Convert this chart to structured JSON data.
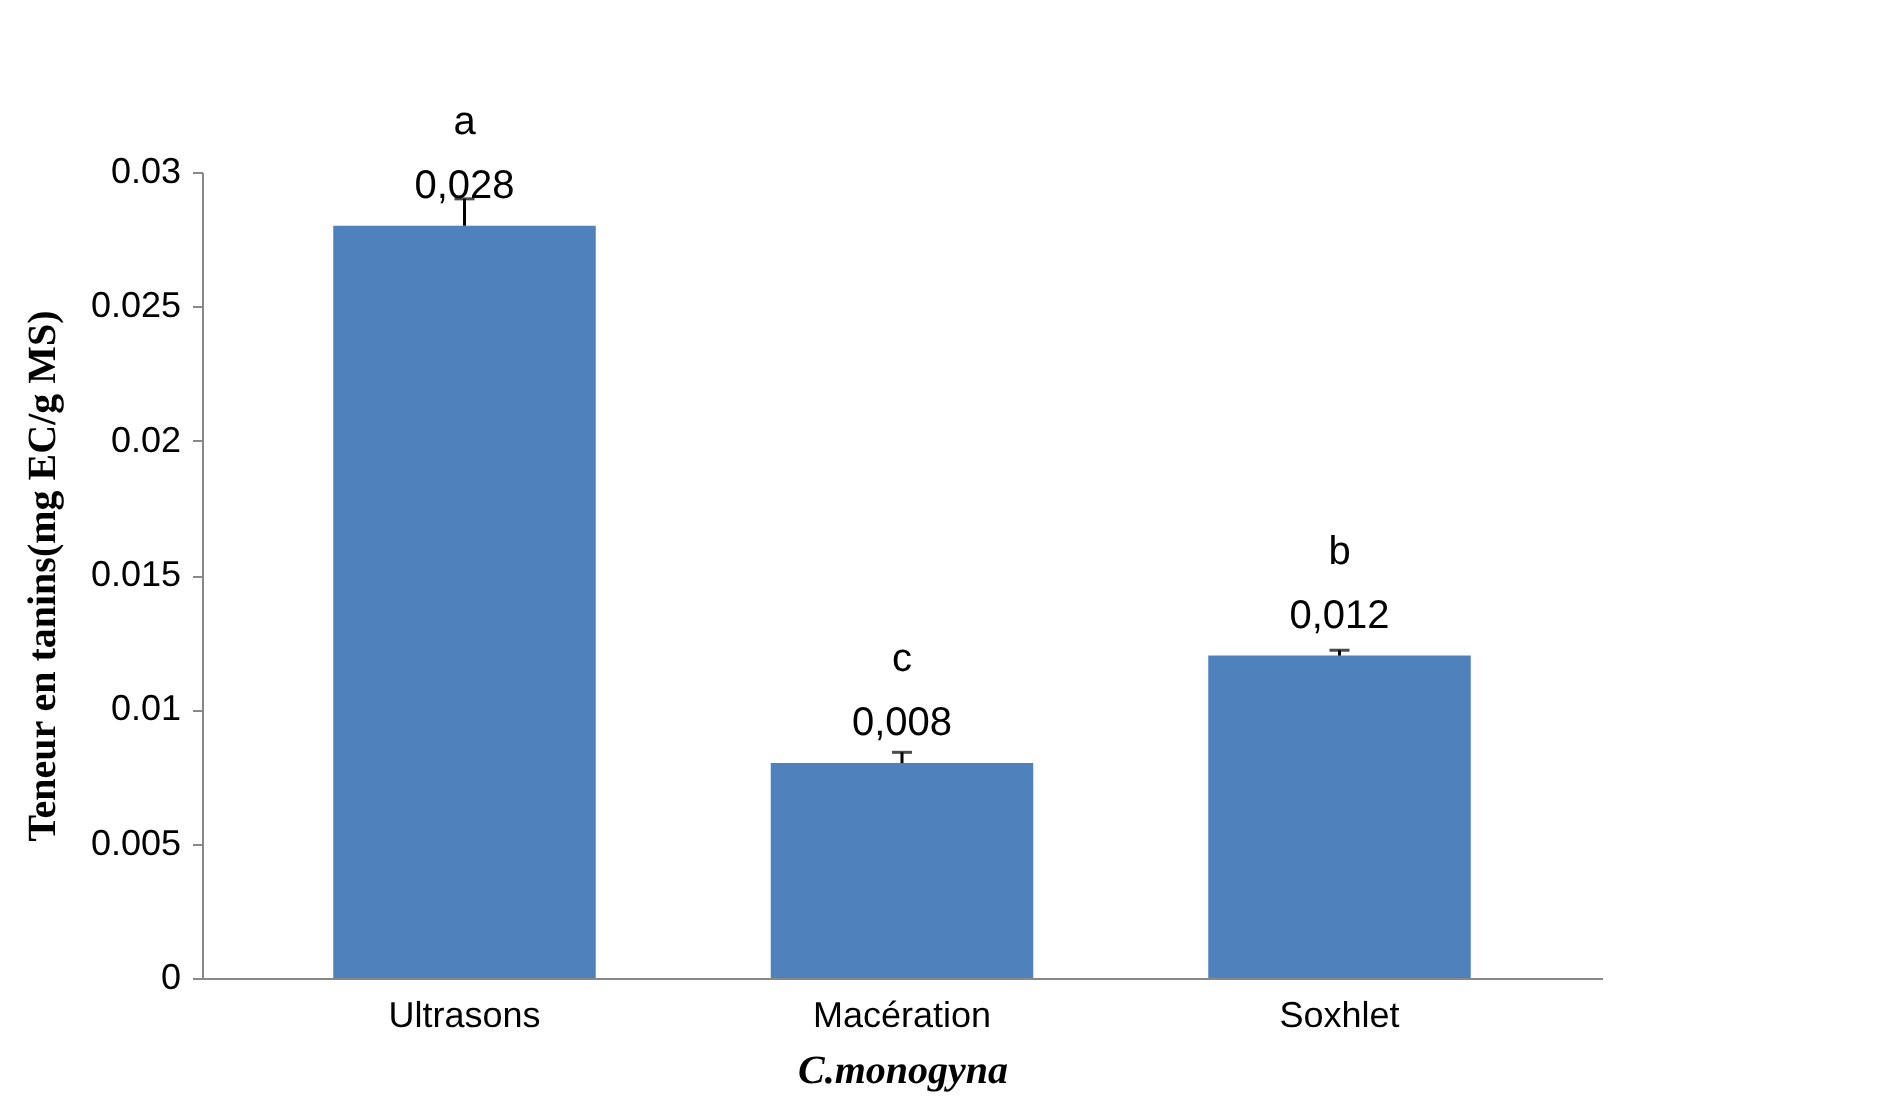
{
  "chart_data": {
    "type": "bar",
    "xlabel": "C.monogyna",
    "ylabel": "Teneur en tanins(mg EC/g MS)",
    "categories": [
      "Ultrasons",
      "Macération",
      "Soxhlet"
    ],
    "values": [
      0.028,
      0.008,
      0.012
    ],
    "color": "#4f81bd",
    "errors": [
      [
        0.028,
        0.029
      ],
      [
        0.008,
        0.0084
      ],
      [
        0.012,
        0.0122
      ]
    ],
    "value_labels": [
      "0,028",
      "0,008",
      "0,012"
    ],
    "annotations": [
      {
        "text": "a",
        "x": "Ultrasons",
        "y": 0.028
      },
      {
        "text": "c",
        "x": "Macération",
        "y": 0.008
      },
      {
        "text": "b",
        "x": "Soxhlet",
        "y": 0.012
      }
    ],
    "ylim": [
      0,
      0.03
    ],
    "yticks": [
      0,
      0.005,
      0.01,
      0.015,
      0.02,
      0.025,
      0.03
    ],
    "grid": false
  }
}
